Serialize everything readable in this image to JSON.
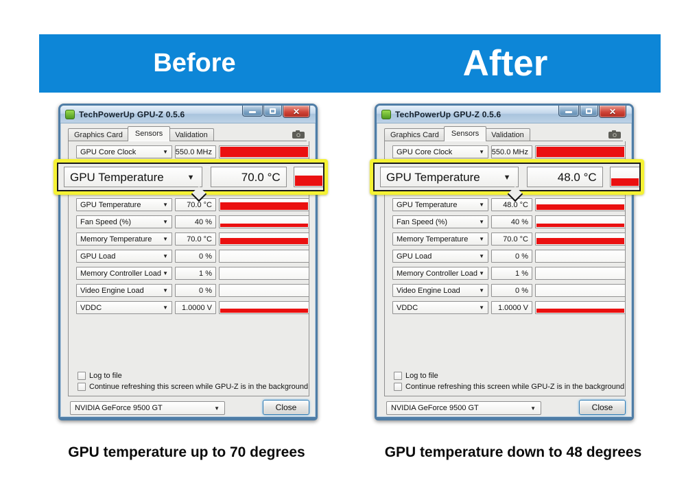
{
  "banner": {
    "before_label": "Before",
    "after_label": "After",
    "color": "#0d86d7"
  },
  "captions": {
    "before": "GPU temperature up to 70 degrees",
    "after": "GPU temperature down to 48 degrees"
  },
  "windows": [
    {
      "title": "TechPowerUp GPU-Z 0.5.6",
      "tabs": {
        "graphics_card": "Graphics Card",
        "sensors": "Sensors",
        "validation": "Validation"
      },
      "callout": {
        "label": "GPU Temperature",
        "value": "70.0 °C",
        "fill": 55
      },
      "core_clock": {
        "label": "GPU Core Clock",
        "value": "550.0 MHz",
        "fill": 88
      },
      "sensors": [
        {
          "label": "GPU Temperature",
          "value": "70.0 °C",
          "fill": 62
        },
        {
          "label": "Fan Speed (%)",
          "value": "40 %",
          "fill": 28
        },
        {
          "label": "Memory Temperature",
          "value": "70.0 °C",
          "fill": 55
        },
        {
          "label": "GPU Load",
          "value": "0 %",
          "fill": 0
        },
        {
          "label": "Memory Controller Load",
          "value": "1 %",
          "fill": 0
        },
        {
          "label": "Video Engine Load",
          "value": "0 %",
          "fill": 0
        },
        {
          "label": "VDDC",
          "value": "1.0000 V",
          "fill": 35
        }
      ],
      "checkboxes": {
        "log": "Log to file",
        "refresh": "Continue refreshing this screen while GPU-Z is in the background"
      },
      "device": "NVIDIA GeForce 9500 GT",
      "close_label": "Close",
      "close_glyph": "✕"
    },
    {
      "title": "TechPowerUp GPU-Z 0.5.6",
      "tabs": {
        "graphics_card": "Graphics Card",
        "sensors": "Sensors",
        "validation": "Validation"
      },
      "callout": {
        "label": "GPU Temperature",
        "value": "48.0 °C",
        "fill": 38
      },
      "core_clock": {
        "label": "GPU Core Clock",
        "value": "550.0 MHz",
        "fill": 88
      },
      "sensors": [
        {
          "label": "GPU Temperature",
          "value": "48.0 °C",
          "fill": 48
        },
        {
          "label": "Fan Speed (%)",
          "value": "40 %",
          "fill": 28
        },
        {
          "label": "Memory Temperature",
          "value": "70.0 °C",
          "fill": 55
        },
        {
          "label": "GPU Load",
          "value": "0 %",
          "fill": 0
        },
        {
          "label": "Memory Controller Load",
          "value": "1 %",
          "fill": 0
        },
        {
          "label": "Video Engine Load",
          "value": "0 %",
          "fill": 0
        },
        {
          "label": "VDDC",
          "value": "1.0000 V",
          "fill": 35
        }
      ],
      "checkboxes": {
        "log": "Log to file",
        "refresh": "Continue refreshing this screen while GPU-Z is in the background"
      },
      "device": "NVIDIA GeForce 9500 GT",
      "close_label": "Close",
      "close_glyph": "✕"
    }
  ]
}
